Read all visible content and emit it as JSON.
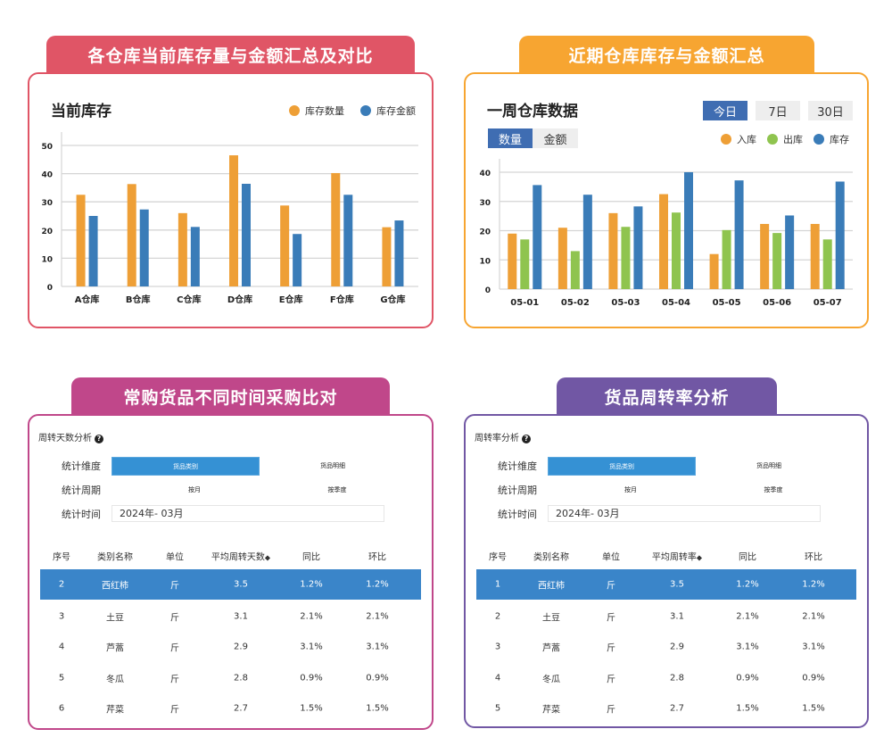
{
  "colors": {
    "panel1": "#e05566",
    "panel2": "#f7a531",
    "panel3": "#c0478a",
    "panel4": "#7157a4",
    "orange": "#ee9f36",
    "blue": "#3a7cb8",
    "green": "#8fc44f",
    "selected_row": "#3a85c9",
    "active_btn": "#3f6db2"
  },
  "panel1": {
    "banner": "各仓库当前库存量与金额汇总及对比",
    "title": "当前库存"
  },
  "panel2": {
    "banner": "近期仓库库存与金额汇总",
    "title": "一周仓库数据",
    "range_buttons": [
      "今日",
      "7日",
      "30日"
    ],
    "active_range": "今日",
    "metric_tabs": [
      "数量",
      "金额"
    ],
    "active_metric": "数量"
  },
  "panel3": {
    "banner": "常购货品不同时间采购比对",
    "subtitle": "周转天数分析",
    "help_icon": "question-circle-icon",
    "form": {
      "dimension_label": "统计维度",
      "dimension_options": [
        "货品类别",
        "货品明细"
      ],
      "period_label": "统计周期",
      "period_options": [
        "按月",
        "按季度"
      ],
      "time_label": "统计时间",
      "time_value": "2024年- 03月"
    },
    "columns": [
      "序号",
      "类别名称",
      "单位",
      "平均周转天数",
      "同比",
      "环比"
    ],
    "rows": [
      [
        "2",
        "西红柿",
        "斤",
        "3.5",
        "1.2%",
        "1.2%"
      ],
      [
        "3",
        "土豆",
        "斤",
        "3.1",
        "2.1%",
        "2.1%"
      ],
      [
        "4",
        "芦蒿",
        "斤",
        "2.9",
        "3.1%",
        "3.1%"
      ],
      [
        "5",
        "冬瓜",
        "斤",
        "2.8",
        "0.9%",
        "0.9%"
      ],
      [
        "6",
        "芹菜",
        "斤",
        "2.7",
        "1.5%",
        "1.5%"
      ]
    ]
  },
  "panel4": {
    "banner": "货品周转率分析",
    "subtitle": "周转率分析",
    "help_icon": "question-circle-icon",
    "form": {
      "dimension_label": "统计维度",
      "dimension_options": [
        "货品类别",
        "货品明细"
      ],
      "period_label": "统计周期",
      "period_options": [
        "按月",
        "按季度"
      ],
      "time_label": "统计时间",
      "time_value": "2024年- 03月"
    },
    "columns": [
      "序号",
      "类别名称",
      "单位",
      "平均周转率",
      "同比",
      "环比"
    ],
    "rows": [
      [
        "1",
        "西红柿",
        "斤",
        "3.5",
        "1.2%",
        "1.2%"
      ],
      [
        "2",
        "土豆",
        "斤",
        "3.1",
        "2.1%",
        "2.1%"
      ],
      [
        "3",
        "芦蒿",
        "斤",
        "2.9",
        "3.1%",
        "3.1%"
      ],
      [
        "4",
        "冬瓜",
        "斤",
        "2.8",
        "0.9%",
        "0.9%"
      ],
      [
        "5",
        "芹菜",
        "斤",
        "2.7",
        "1.5%",
        "1.5%"
      ]
    ]
  },
  "chart_data": [
    {
      "type": "bar",
      "title": "当前库存",
      "categories": [
        "A仓库",
        "B仓库",
        "C仓库",
        "D仓库",
        "E仓库",
        "F仓库",
        "G仓库"
      ],
      "series": [
        {
          "name": "库存数量",
          "color": "#ee9f36",
          "values": [
            32.5,
            36.3,
            26,
            46.5,
            28.7,
            40.2,
            21
          ]
        },
        {
          "name": "库存金额",
          "color": "#3a7cb8",
          "values": [
            25,
            27.3,
            21.1,
            36.4,
            18.6,
            32.5,
            23.4
          ]
        }
      ],
      "ylim": [
        0,
        50
      ],
      "yticks": [
        0,
        10,
        20,
        30,
        40,
        50
      ],
      "grid": true,
      "legend": "top-right"
    },
    {
      "type": "bar",
      "title": "一周仓库数据",
      "categories": [
        "05-01",
        "05-02",
        "05-03",
        "05-04",
        "05-05",
        "05-06",
        "05-07"
      ],
      "series": [
        {
          "name": "入库",
          "color": "#ee9f36",
          "values": [
            19,
            21,
            26,
            32.5,
            12,
            22.3,
            22.3
          ]
        },
        {
          "name": "出库",
          "color": "#8fc44f",
          "values": [
            17,
            13,
            21.3,
            26.2,
            20.2,
            19.2,
            17
          ]
        },
        {
          "name": "库存",
          "color": "#3a7cb8",
          "values": [
            35.6,
            32.3,
            28.3,
            40,
            37.2,
            25.2,
            36.8
          ]
        }
      ],
      "ylim": [
        0,
        40
      ],
      "yticks": [
        0,
        10,
        20,
        30,
        40
      ],
      "grid": true,
      "legend": "top-right"
    }
  ]
}
